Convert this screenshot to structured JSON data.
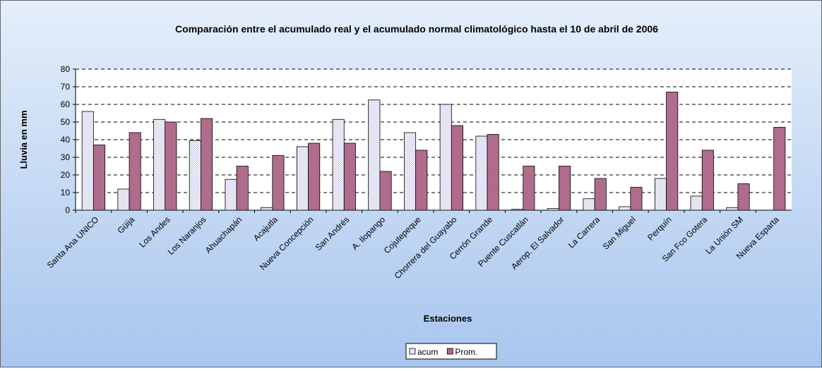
{
  "chart_data": {
    "type": "bar",
    "title": "Comparación entre el acumulado real y el acumulado normal climatológico hasta el 10 de abril de 2006",
    "x_label": "Estaciones",
    "y_label": "Lluvia en mm",
    "categories": [
      "Santa Ana UNICO",
      "Güija",
      "Los Andes",
      "Los Naranjos",
      "Ahuachapán",
      "Acajutla",
      "Nueva Concepción",
      "San Andrés",
      "A. Ilopango",
      "Cojutepeque",
      "Chorrera del Guayabo",
      "Cerrón Grande",
      "Puente Cuscatlán",
      "Aerop. El Salvador",
      "La Carrera",
      "San Miguel",
      "Perquín",
      "San Fco Gotera",
      "La Unión SM",
      "Nueva Esparta"
    ],
    "series": [
      {
        "name": "acum",
        "color": "#c8c8e8",
        "values": [
          56,
          12,
          51.5,
          39.5,
          17.5,
          1.5,
          36,
          51.5,
          62.5,
          44,
          60,
          42,
          0.5,
          1,
          6.5,
          2,
          18,
          8,
          1.5,
          0
        ]
      },
      {
        "name": "Prom.",
        "color": "#b06c8c",
        "values": [
          37,
          44,
          50,
          52,
          25,
          31,
          38,
          38,
          22,
          34,
          48,
          43,
          25,
          25,
          18,
          13,
          67,
          34,
          15,
          47
        ]
      }
    ],
    "ylim": [
      0,
      80
    ],
    "yticks": [
      0,
      10,
      20,
      30,
      40,
      50,
      60,
      70,
      80
    ],
    "grid": true,
    "legend": "bottom"
  }
}
